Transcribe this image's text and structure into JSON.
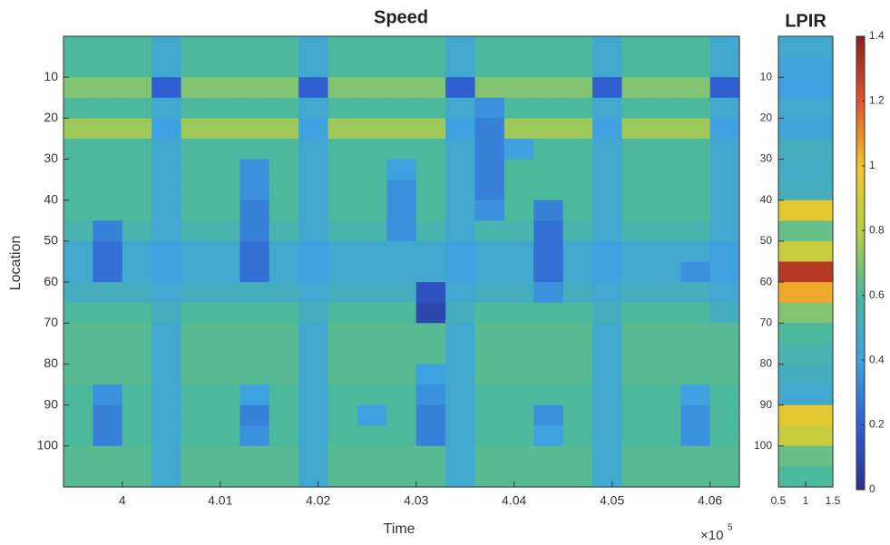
{
  "chart_data": [
    {
      "type": "heatmap",
      "title": "Speed",
      "x_label": "Time",
      "y_label": "Location",
      "x_offset_base": "×10",
      "x_offset_exponent": "5",
      "xlim": [
        3.994,
        4.063
      ],
      "xticks": [
        4,
        4.01,
        4.02,
        4.03,
        4.04,
        4.05,
        4.06
      ],
      "ylim": [
        110,
        0
      ],
      "yticks": [
        10,
        20,
        30,
        40,
        50,
        60,
        70,
        80,
        90,
        100
      ],
      "clim": [
        0,
        1.4
      ],
      "colorscale": [
        "#2a2f8c",
        "#2f5fd0",
        "#3fa2e0",
        "#4cb89c",
        "#b8cf45",
        "#f2c52c",
        "#e2532a",
        "#8a1f1f"
      ],
      "x": [
        3.9955,
        3.9985,
        4.0015,
        4.0045,
        4.0075,
        4.0105,
        4.0135,
        4.0165,
        4.0195,
        4.0225,
        4.0255,
        4.0285,
        4.0315,
        4.0345,
        4.0375,
        4.0405,
        4.0435,
        4.0465,
        4.0495,
        4.0525,
        4.0555,
        4.0585,
        4.0615
      ],
      "y": [
        2.5,
        7.5,
        12.5,
        17.5,
        22.5,
        27.5,
        32.5,
        37.5,
        42.5,
        47.5,
        52.5,
        57.5,
        62.5,
        67.5,
        72.5,
        77.5,
        82.5,
        87.5,
        92.5,
        97.5,
        102.5,
        107.5
      ],
      "z": [
        [
          0.6,
          0.6,
          0.6,
          0.45,
          0.6,
          0.6,
          0.6,
          0.6,
          0.45,
          0.6,
          0.6,
          0.6,
          0.6,
          0.45,
          0.6,
          0.6,
          0.6,
          0.6,
          0.45,
          0.6,
          0.6,
          0.6,
          0.45
        ],
        [
          0.6,
          0.6,
          0.6,
          0.45,
          0.6,
          0.6,
          0.6,
          0.6,
          0.45,
          0.6,
          0.6,
          0.6,
          0.6,
          0.45,
          0.6,
          0.6,
          0.6,
          0.6,
          0.45,
          0.6,
          0.6,
          0.6,
          0.45
        ],
        [
          0.7,
          0.7,
          0.7,
          0.2,
          0.7,
          0.7,
          0.7,
          0.7,
          0.2,
          0.7,
          0.7,
          0.7,
          0.7,
          0.2,
          0.7,
          0.7,
          0.7,
          0.7,
          0.2,
          0.7,
          0.7,
          0.7,
          0.2
        ],
        [
          0.6,
          0.6,
          0.6,
          0.45,
          0.6,
          0.6,
          0.6,
          0.6,
          0.45,
          0.6,
          0.6,
          0.6,
          0.6,
          0.45,
          0.35,
          0.6,
          0.6,
          0.6,
          0.45,
          0.6,
          0.6,
          0.6,
          0.45
        ],
        [
          0.75,
          0.75,
          0.75,
          0.4,
          0.75,
          0.75,
          0.75,
          0.75,
          0.4,
          0.75,
          0.75,
          0.75,
          0.75,
          0.4,
          0.3,
          0.75,
          0.75,
          0.75,
          0.4,
          0.75,
          0.75,
          0.75,
          0.4
        ],
        [
          0.6,
          0.6,
          0.6,
          0.45,
          0.6,
          0.6,
          0.6,
          0.6,
          0.45,
          0.6,
          0.6,
          0.6,
          0.6,
          0.45,
          0.3,
          0.4,
          0.6,
          0.6,
          0.45,
          0.6,
          0.6,
          0.6,
          0.45
        ],
        [
          0.6,
          0.6,
          0.6,
          0.45,
          0.6,
          0.6,
          0.35,
          0.6,
          0.45,
          0.6,
          0.6,
          0.4,
          0.6,
          0.45,
          0.3,
          0.6,
          0.6,
          0.6,
          0.45,
          0.6,
          0.6,
          0.6,
          0.45
        ],
        [
          0.6,
          0.6,
          0.6,
          0.45,
          0.6,
          0.6,
          0.35,
          0.6,
          0.45,
          0.6,
          0.6,
          0.35,
          0.6,
          0.45,
          0.3,
          0.6,
          0.6,
          0.6,
          0.45,
          0.6,
          0.6,
          0.6,
          0.45
        ],
        [
          0.6,
          0.6,
          0.6,
          0.45,
          0.6,
          0.6,
          0.3,
          0.6,
          0.45,
          0.6,
          0.6,
          0.35,
          0.6,
          0.45,
          0.35,
          0.6,
          0.3,
          0.6,
          0.45,
          0.6,
          0.6,
          0.6,
          0.45
        ],
        [
          0.55,
          0.3,
          0.55,
          0.45,
          0.55,
          0.55,
          0.3,
          0.55,
          0.45,
          0.55,
          0.55,
          0.35,
          0.55,
          0.45,
          0.55,
          0.55,
          0.25,
          0.55,
          0.45,
          0.55,
          0.55,
          0.55,
          0.45
        ],
        [
          0.45,
          0.25,
          0.45,
          0.4,
          0.45,
          0.45,
          0.25,
          0.45,
          0.4,
          0.45,
          0.45,
          0.45,
          0.45,
          0.4,
          0.45,
          0.45,
          0.25,
          0.45,
          0.4,
          0.45,
          0.45,
          0.45,
          0.4
        ],
        [
          0.45,
          0.25,
          0.45,
          0.4,
          0.45,
          0.45,
          0.25,
          0.45,
          0.4,
          0.45,
          0.45,
          0.45,
          0.45,
          0.4,
          0.45,
          0.45,
          0.25,
          0.45,
          0.4,
          0.45,
          0.45,
          0.35,
          0.4
        ],
        [
          0.5,
          0.5,
          0.5,
          0.45,
          0.5,
          0.5,
          0.5,
          0.5,
          0.45,
          0.5,
          0.5,
          0.5,
          0.15,
          0.45,
          0.5,
          0.5,
          0.35,
          0.5,
          0.45,
          0.5,
          0.5,
          0.5,
          0.45
        ],
        [
          0.6,
          0.6,
          0.6,
          0.5,
          0.6,
          0.6,
          0.6,
          0.6,
          0.5,
          0.6,
          0.6,
          0.6,
          0.1,
          0.5,
          0.6,
          0.6,
          0.6,
          0.6,
          0.5,
          0.6,
          0.6,
          0.6,
          0.5
        ],
        [
          0.62,
          0.62,
          0.62,
          0.45,
          0.62,
          0.62,
          0.62,
          0.62,
          0.45,
          0.62,
          0.62,
          0.62,
          0.62,
          0.45,
          0.62,
          0.62,
          0.62,
          0.62,
          0.45,
          0.62,
          0.62,
          0.62,
          0.62
        ],
        [
          0.62,
          0.62,
          0.62,
          0.45,
          0.62,
          0.62,
          0.62,
          0.62,
          0.45,
          0.62,
          0.62,
          0.62,
          0.62,
          0.45,
          0.62,
          0.62,
          0.62,
          0.62,
          0.45,
          0.62,
          0.62,
          0.62,
          0.62
        ],
        [
          0.62,
          0.62,
          0.62,
          0.45,
          0.62,
          0.62,
          0.62,
          0.62,
          0.45,
          0.62,
          0.62,
          0.62,
          0.4,
          0.45,
          0.62,
          0.62,
          0.62,
          0.62,
          0.45,
          0.62,
          0.62,
          0.62,
          0.62
        ],
        [
          0.6,
          0.35,
          0.6,
          0.45,
          0.6,
          0.6,
          0.4,
          0.6,
          0.45,
          0.6,
          0.6,
          0.6,
          0.35,
          0.45,
          0.6,
          0.6,
          0.6,
          0.6,
          0.45,
          0.6,
          0.6,
          0.4,
          0.6
        ],
        [
          0.6,
          0.3,
          0.6,
          0.45,
          0.6,
          0.6,
          0.3,
          0.6,
          0.45,
          0.6,
          0.4,
          0.6,
          0.3,
          0.45,
          0.6,
          0.6,
          0.35,
          0.6,
          0.45,
          0.6,
          0.6,
          0.35,
          0.6
        ],
        [
          0.6,
          0.3,
          0.6,
          0.45,
          0.6,
          0.6,
          0.35,
          0.6,
          0.45,
          0.6,
          0.6,
          0.6,
          0.3,
          0.45,
          0.6,
          0.6,
          0.4,
          0.6,
          0.45,
          0.6,
          0.6,
          0.35,
          0.6
        ],
        [
          0.62,
          0.62,
          0.62,
          0.45,
          0.62,
          0.62,
          0.62,
          0.62,
          0.45,
          0.62,
          0.62,
          0.62,
          0.62,
          0.45,
          0.62,
          0.62,
          0.62,
          0.62,
          0.45,
          0.62,
          0.62,
          0.62,
          0.62
        ],
        [
          0.62,
          0.62,
          0.62,
          0.45,
          0.62,
          0.62,
          0.62,
          0.62,
          0.45,
          0.62,
          0.62,
          0.62,
          0.62,
          0.45,
          0.62,
          0.62,
          0.62,
          0.62,
          0.45,
          0.62,
          0.62,
          0.62,
          0.62
        ]
      ]
    },
    {
      "type": "heatmap",
      "title": "LPIR",
      "xlim": [
        0.5,
        1.5
      ],
      "xticks": [
        0.5,
        1,
        1.5
      ],
      "ylim": [
        110,
        0
      ],
      "yticks": [
        10,
        20,
        30,
        40,
        50,
        60,
        70,
        80,
        90,
        100
      ],
      "clim": [
        0,
        1.4
      ],
      "colorscale": [
        "#2a2f8c",
        "#2f5fd0",
        "#3fa2e0",
        "#4cb89c",
        "#b8cf45",
        "#f2c52c",
        "#e2532a",
        "#8a1f1f"
      ],
      "colorbar_ticks": [
        0,
        0.2,
        0.4,
        0.6,
        0.8,
        1,
        1.2,
        1.4
      ],
      "x": [
        1
      ],
      "y": [
        2.5,
        7.5,
        12.5,
        17.5,
        22.5,
        27.5,
        32.5,
        37.5,
        42.5,
        47.5,
        52.5,
        57.5,
        62.5,
        67.5,
        72.5,
        77.5,
        82.5,
        87.5,
        92.5,
        97.5,
        102.5,
        107.5
      ],
      "z": [
        [
          0.45
        ],
        [
          0.42
        ],
        [
          0.4
        ],
        [
          0.45
        ],
        [
          0.42
        ],
        [
          0.5
        ],
        [
          0.48
        ],
        [
          0.5
        ],
        [
          0.95
        ],
        [
          0.65
        ],
        [
          0.85
        ],
        [
          1.3
        ],
        [
          1.05
        ],
        [
          0.7
        ],
        [
          0.6
        ],
        [
          0.55
        ],
        [
          0.5
        ],
        [
          0.45
        ],
        [
          0.95
        ],
        [
          0.85
        ],
        [
          0.65
        ],
        [
          0.6
        ]
      ]
    }
  ]
}
